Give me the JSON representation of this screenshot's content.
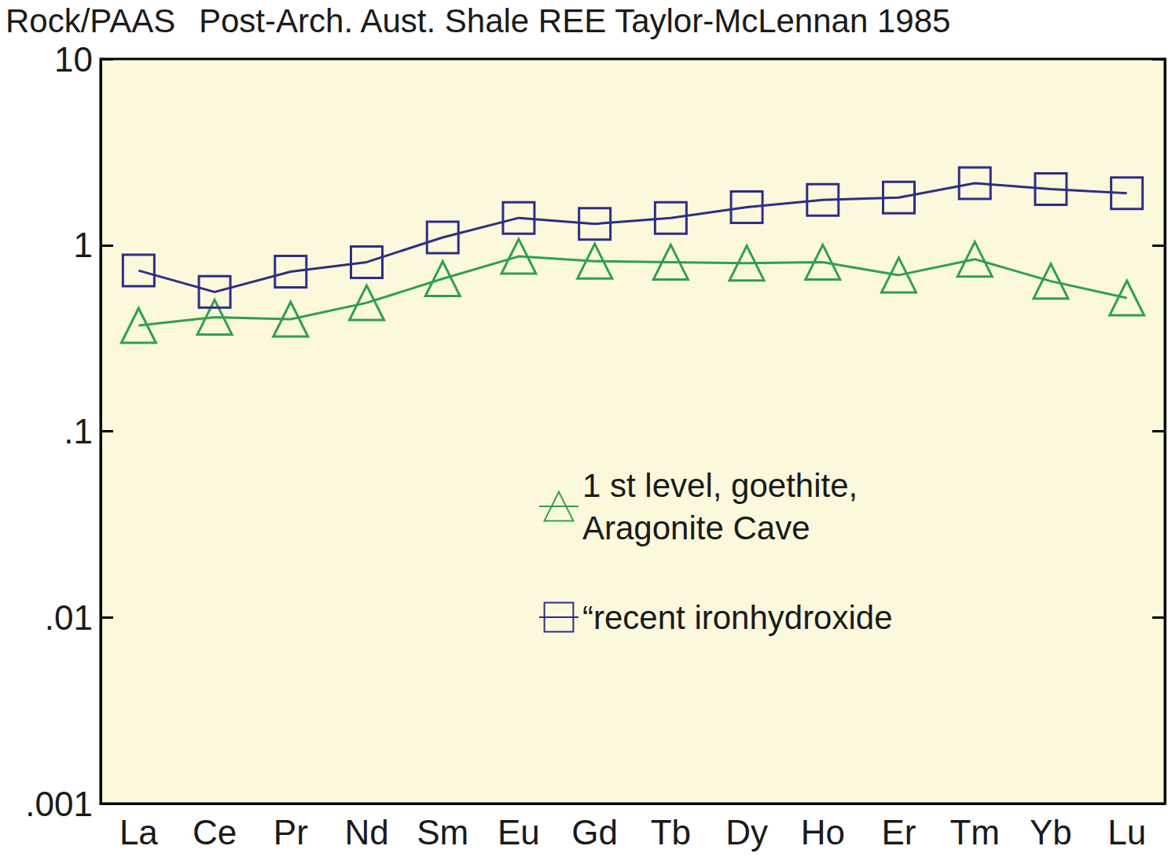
{
  "chart_data": {
    "type": "line",
    "title": "Post-Arch. Aust. Shale REE Taylor-McLennan 1985",
    "ylabel": "Rock/PAAS",
    "categories": [
      "La",
      "Ce",
      "Pr",
      "Nd",
      "Sm",
      "Eu",
      "Gd",
      "Tb",
      "Dy",
      "Ho",
      "Er",
      "Tm",
      "Yb",
      "Lu"
    ],
    "series": [
      {
        "name": "1 st level, goethite, Aragonite Cave",
        "color": "#2ea04f",
        "marker": "triangle",
        "values": [
          0.37,
          0.41,
          0.4,
          0.49,
          0.66,
          0.87,
          0.82,
          0.81,
          0.8,
          0.81,
          0.69,
          0.84,
          0.64,
          0.52
        ]
      },
      {
        "name": "“recent ironhydroxide",
        "color": "#2e2e86",
        "marker": "square",
        "values": [
          0.73,
          0.56,
          0.72,
          0.81,
          1.1,
          1.4,
          1.3,
          1.4,
          1.6,
          1.75,
          1.8,
          2.15,
          2.0,
          1.9
        ]
      }
    ],
    "ylim": [
      0.001,
      10
    ],
    "yticks": [
      {
        "value": 0.001,
        "label": ".001"
      },
      {
        "value": 0.01,
        "label": ".01"
      },
      {
        "value": 0.1,
        "label": ".1"
      },
      1,
      10
    ],
    "log": "y",
    "grid": false,
    "legend": "lower right"
  }
}
